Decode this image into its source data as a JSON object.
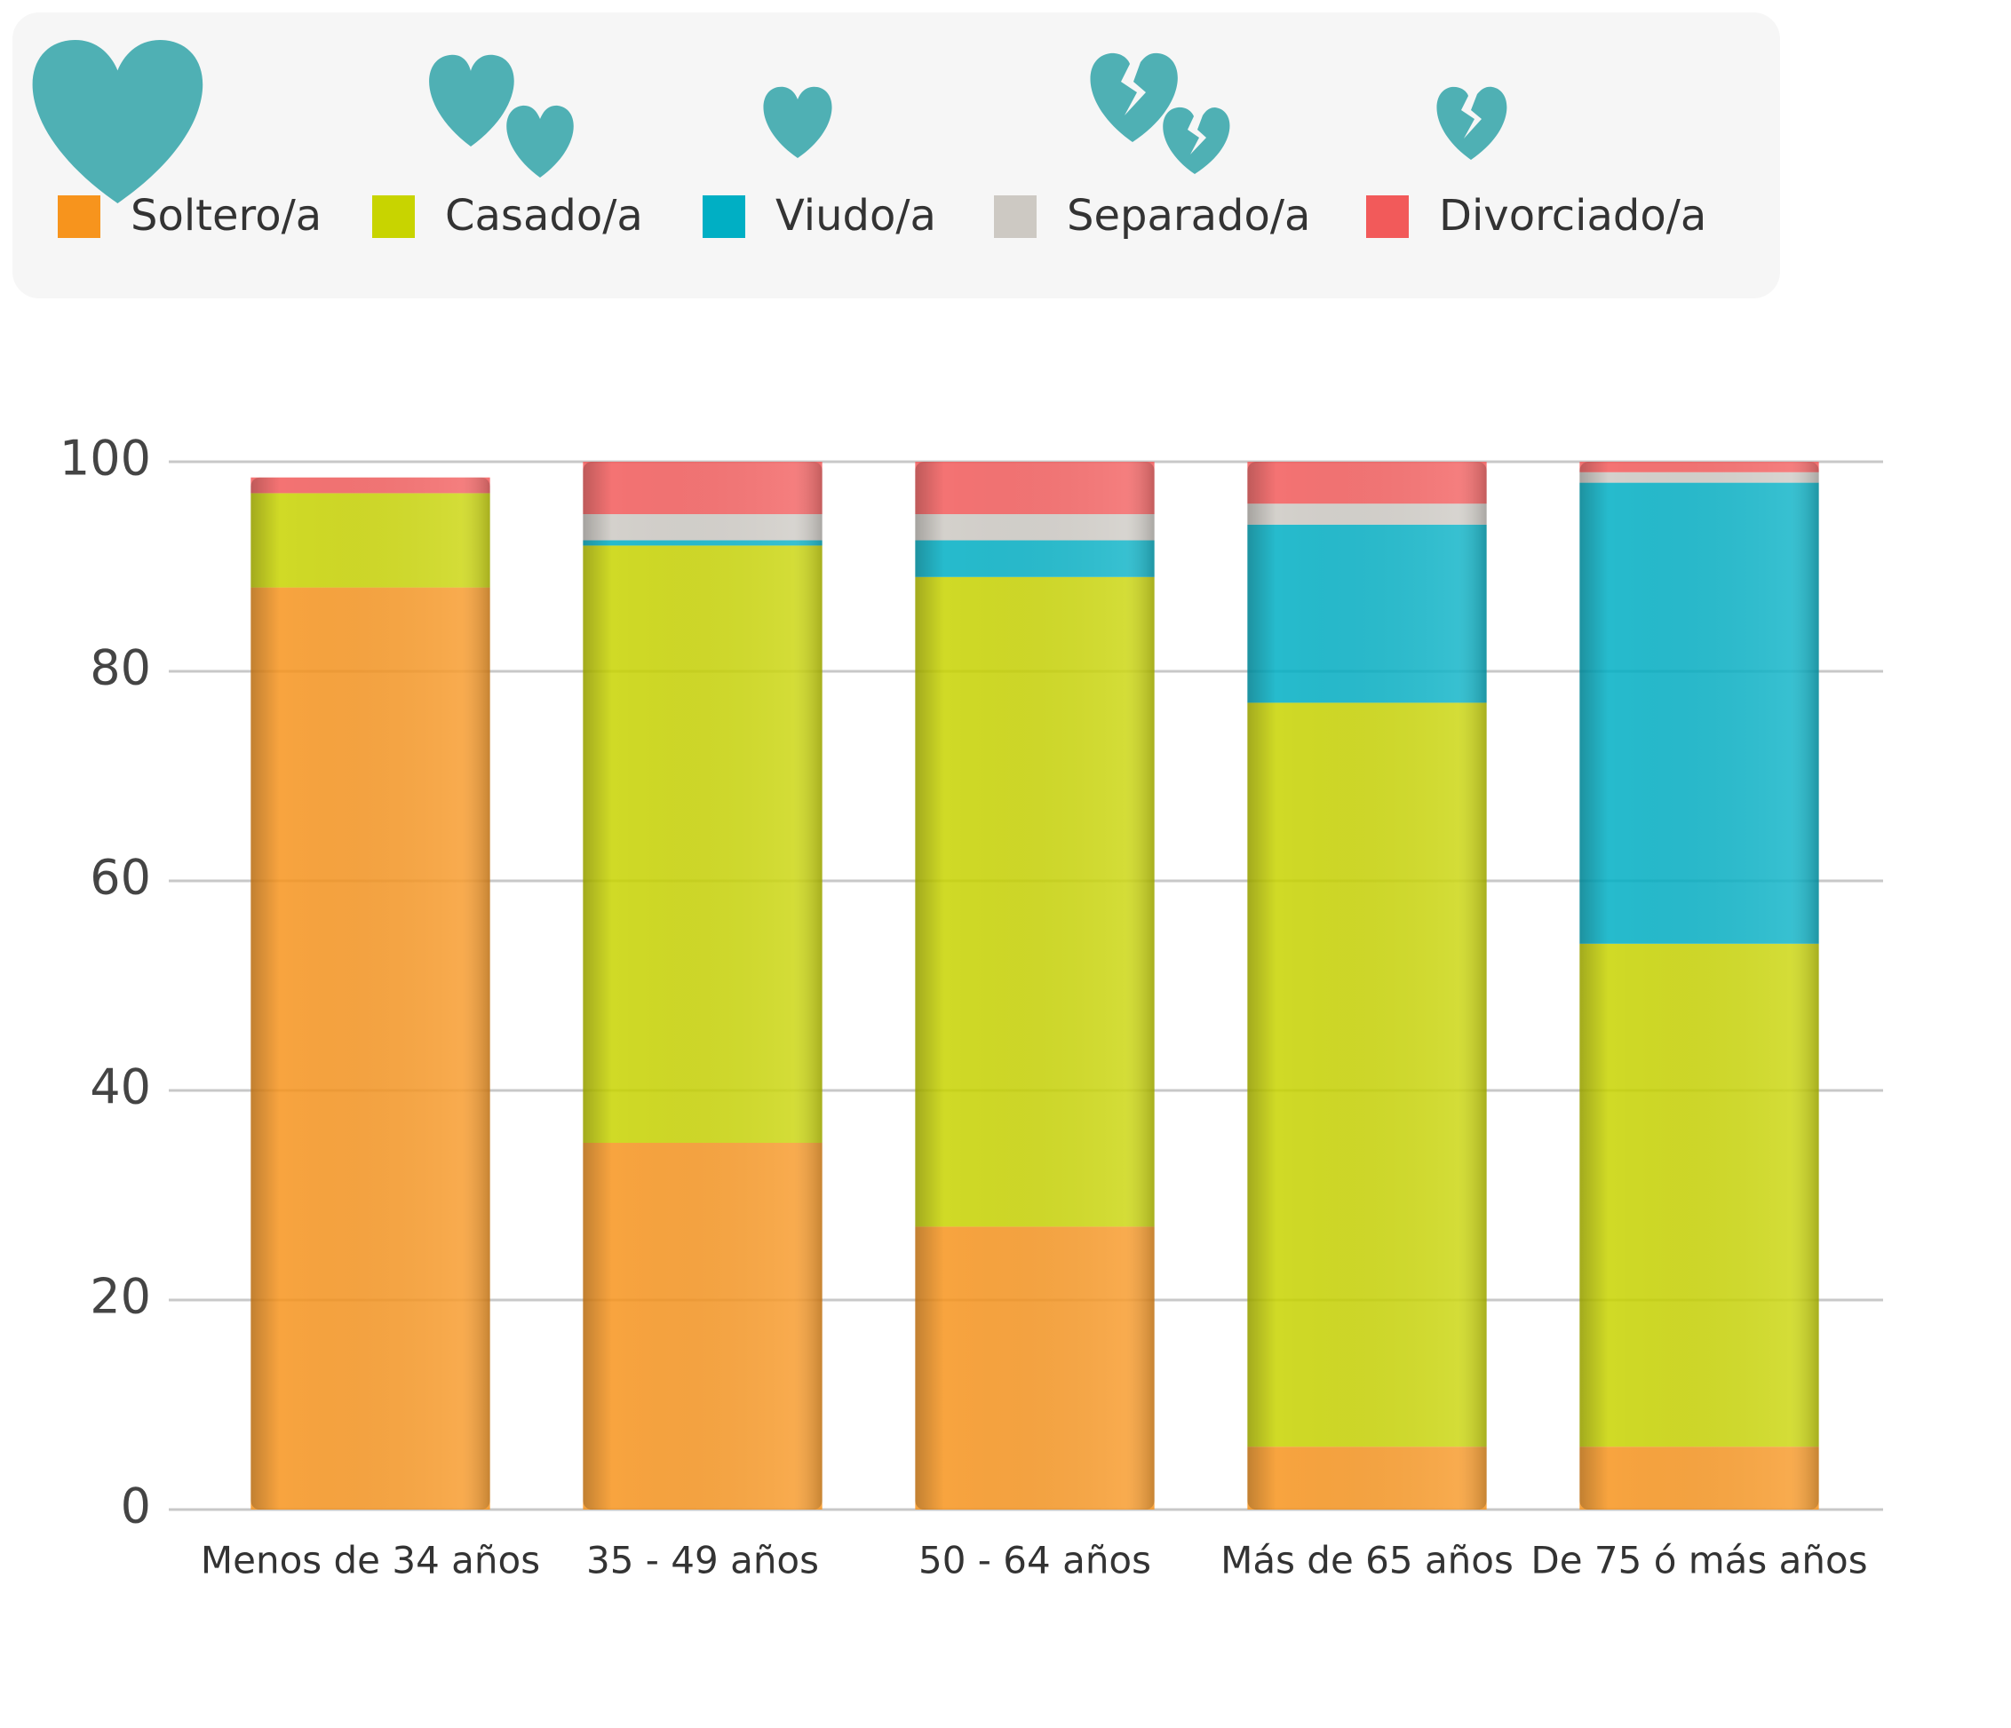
{
  "chart_data": {
    "type": "stacked_bar",
    "categories": [
      "Menos de 34 años",
      "35 - 49 años",
      "50 - 64 años",
      "Más de 65 años",
      "De 75 ó más años"
    ],
    "series": [
      {
        "name": "Soltero/a",
        "color": "#f7941d",
        "values": [
          88,
          35,
          27,
          6,
          6
        ]
      },
      {
        "name": "Casado/a",
        "color": "#c8d400",
        "values": [
          9,
          57,
          62,
          71,
          48
        ]
      },
      {
        "name": "Viudo/a",
        "color": "#00afc4",
        "values": [
          0,
          0.5,
          3.5,
          17,
          44
        ]
      },
      {
        "name": "Separado/a",
        "color": "#cdc9c3",
        "values": [
          0,
          2.5,
          2.5,
          2,
          1
        ]
      },
      {
        "name": "Divorciado/a",
        "color": "#f25a5a",
        "values": [
          1.5,
          5,
          5,
          4,
          1
        ]
      }
    ],
    "ylim": [
      0,
      100
    ],
    "yticks": [
      0,
      20,
      40,
      60,
      80,
      100
    ],
    "grid": true,
    "legend": "top"
  }
}
